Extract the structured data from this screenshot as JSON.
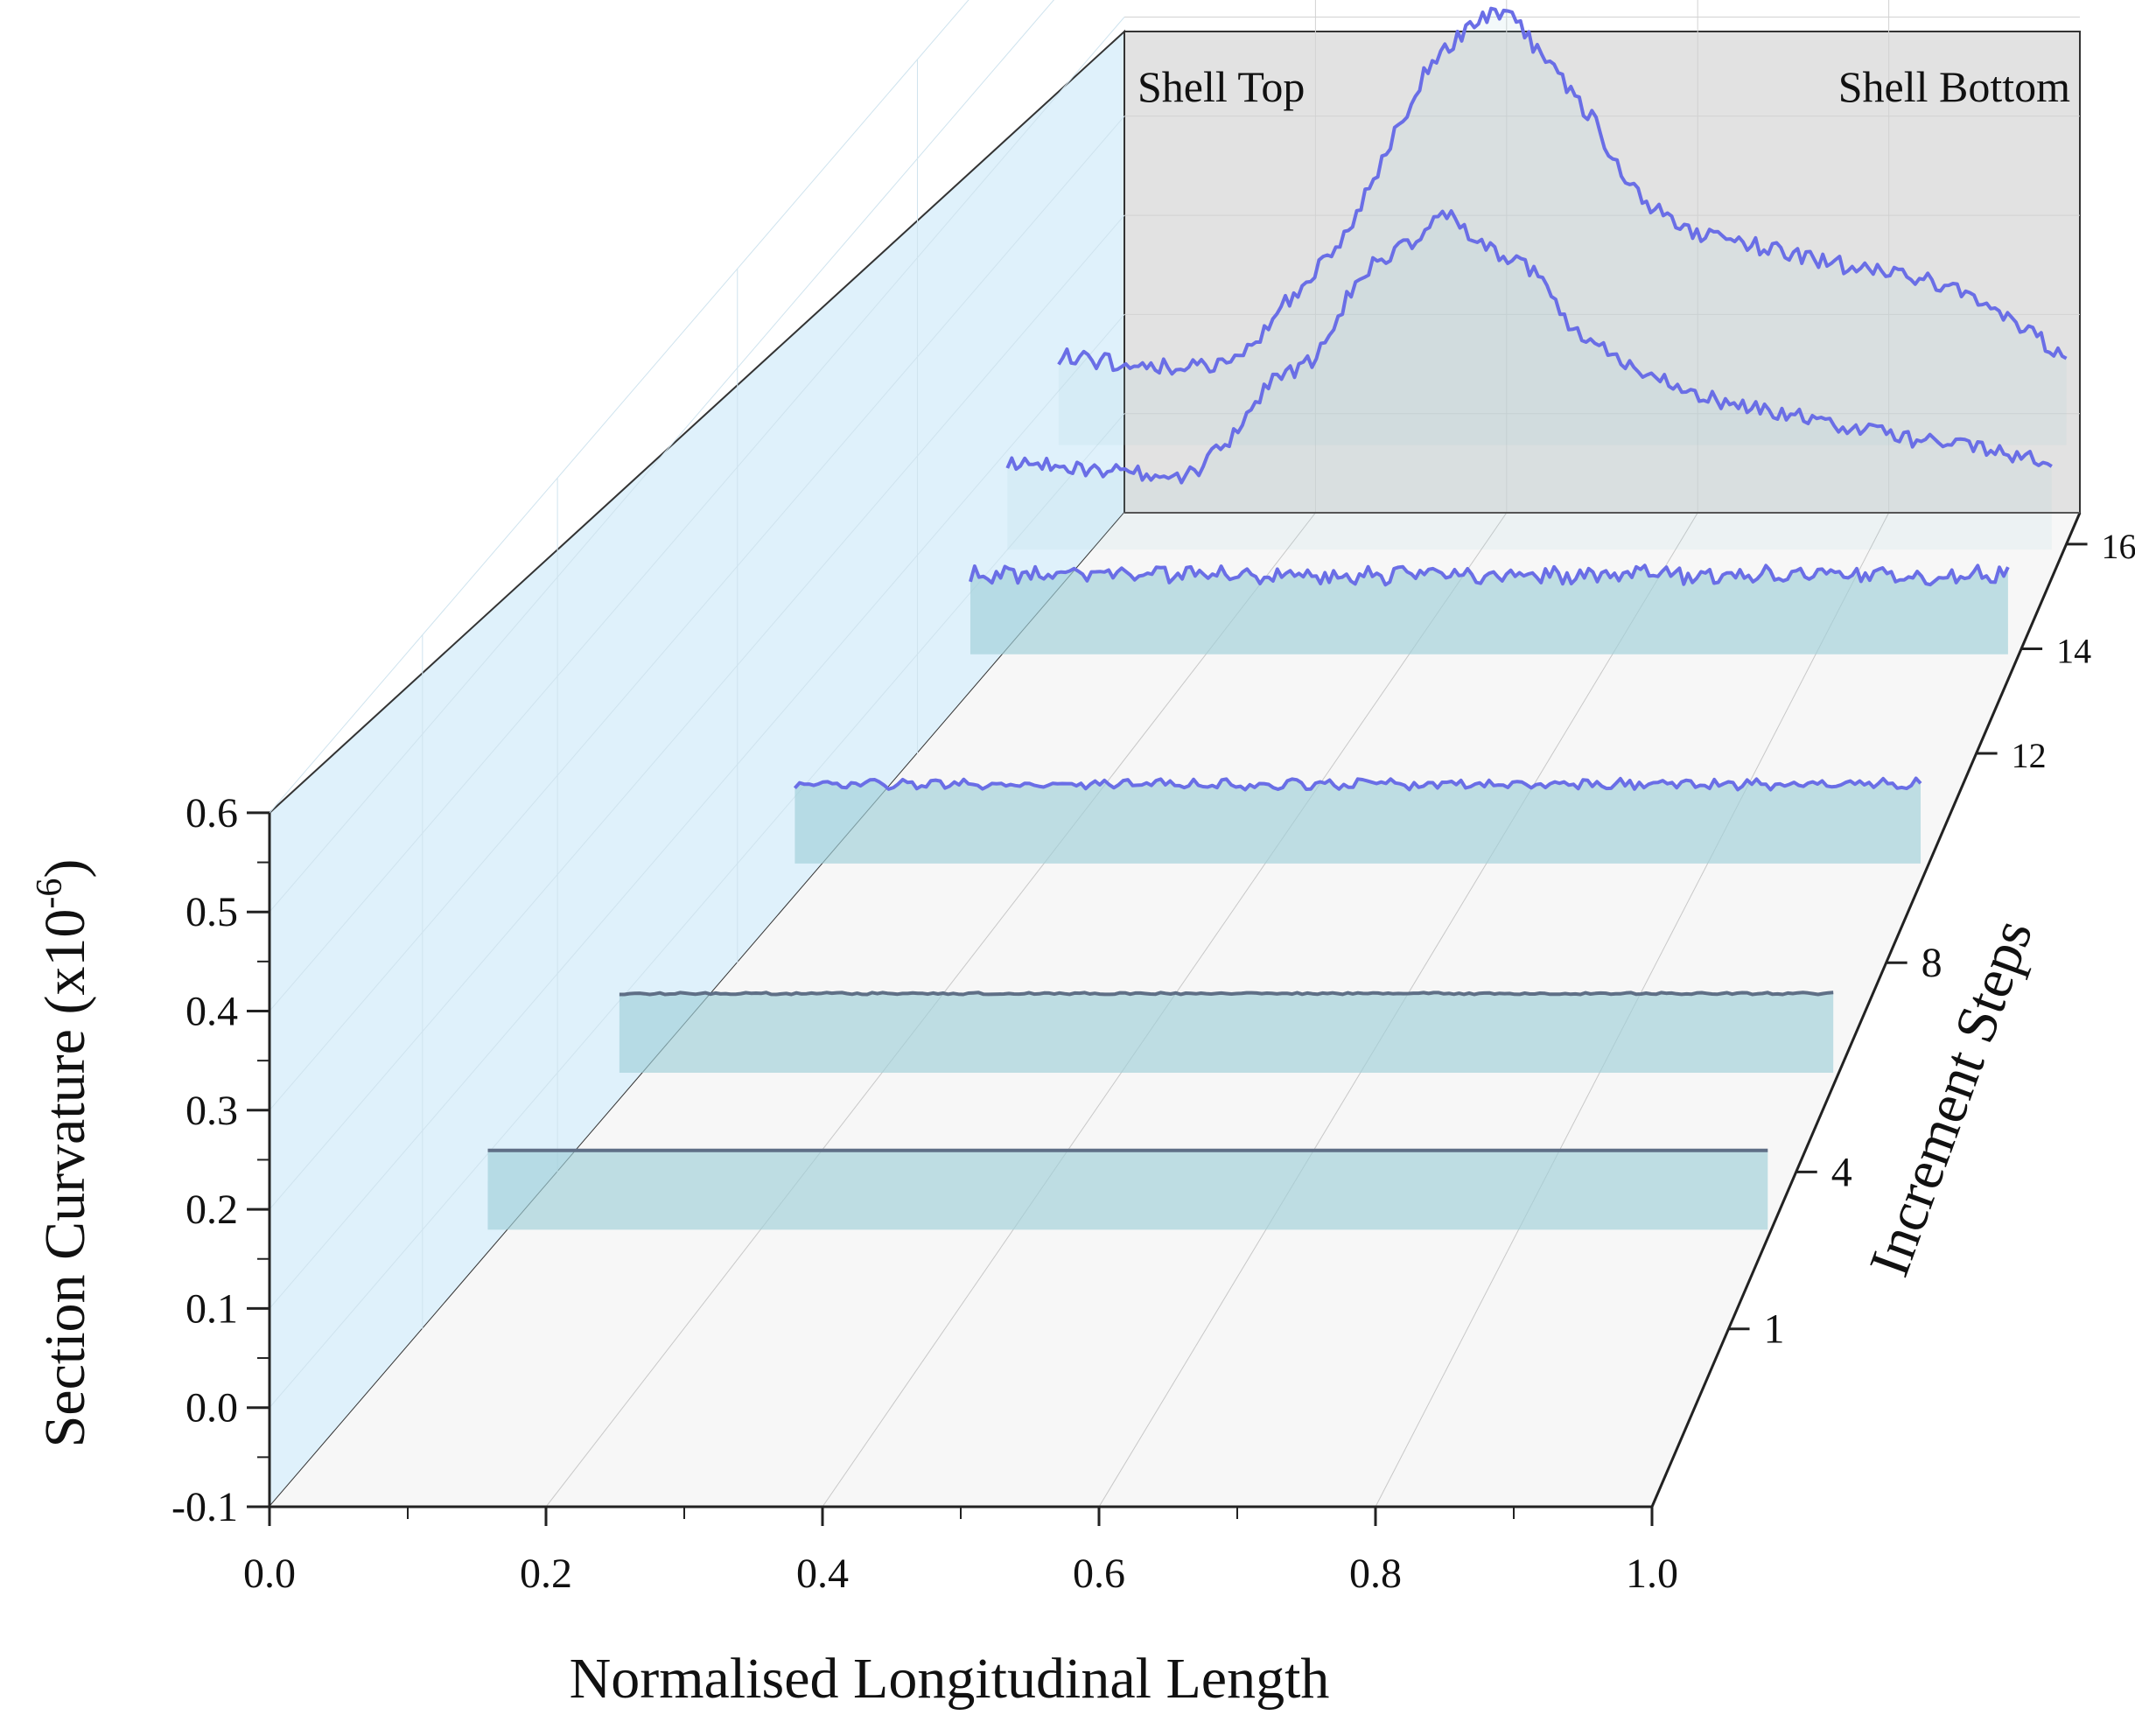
{
  "chart_data": {
    "type": "line",
    "subtype": "3d-waterfall",
    "xlabel": "Normalised Longitudinal Length",
    "ylabel": "Section Curvature (x10",
    "ylabel_exponent": "-6",
    "ylabel_close": ")",
    "zlabel": "Increment Steps",
    "xlim": [
      0.0,
      1.0
    ],
    "ylim": [
      -0.1,
      0.6
    ],
    "x_ticks": [
      "0.0",
      "0.2",
      "0.4",
      "0.6",
      "0.8",
      "1.0"
    ],
    "y_ticks": [
      "-0.1",
      "0.0",
      "0.1",
      "0.2",
      "0.3",
      "0.4",
      "0.5",
      "0.6"
    ],
    "z_ticks": [
      "1",
      "4",
      "8",
      "12",
      "14",
      "16"
    ],
    "annotations": {
      "left": "Shell Top",
      "right": "Shell Bottom"
    },
    "colors": {
      "back_wall": "#e2e2e2",
      "side_wall": "#dff1fb",
      "floor": "#f7f7f7",
      "fill": "#9fd0d9",
      "line_flat": "#5f6f86",
      "line_wave": "#6a6ee6",
      "axis": "#222222",
      "grid": "#c8c8c8"
    },
    "series": [
      {
        "name": "Step 1",
        "step": 1,
        "x_range": [
          0.05,
          1.03
        ],
        "shape": "flat",
        "level": 0.08,
        "noise": 0.0
      },
      {
        "name": "Step 4",
        "step": 4,
        "x_range": [
          0.05,
          1.03
        ],
        "shape": "flat",
        "level": 0.08,
        "noise": 0.001
      },
      {
        "name": "Step 8",
        "step": 8,
        "x_range": [
          0.05,
          1.03
        ],
        "shape": "wavy",
        "level": 0.08,
        "noise": 0.004
      },
      {
        "name": "Step 12",
        "step": 12,
        "x_range": [
          0.05,
          1.03
        ],
        "shape": "wavy",
        "level": 0.08,
        "noise": 0.007
      },
      {
        "name": "Step 14",
        "step": 14,
        "x_range": [
          0.0,
          1.03
        ],
        "shape": "peak",
        "peak_x": 0.43,
        "peak": 0.34,
        "noise": 0.008,
        "profile": [
          [
            0.0,
            0.09
          ],
          [
            0.1,
            0.08
          ],
          [
            0.18,
            0.075
          ],
          [
            0.22,
            0.11
          ],
          [
            0.26,
            0.17
          ],
          [
            0.3,
            0.19
          ],
          [
            0.35,
            0.28
          ],
          [
            0.4,
            0.31
          ],
          [
            0.43,
            0.34
          ],
          [
            0.48,
            0.3
          ],
          [
            0.52,
            0.28
          ],
          [
            0.56,
            0.22
          ],
          [
            0.62,
            0.18
          ],
          [
            0.7,
            0.15
          ],
          [
            0.8,
            0.13
          ],
          [
            0.9,
            0.11
          ],
          [
            1.03,
            0.09
          ]
        ]
      },
      {
        "name": "Step 16",
        "step": 16,
        "x_range": [
          -0.04,
          1.0
        ],
        "shape": "peak",
        "peak_x": 0.42,
        "peak": 0.44,
        "noise": 0.009,
        "profile": [
          [
            -0.04,
            0.09
          ],
          [
            0.05,
            0.08
          ],
          [
            0.12,
            0.08
          ],
          [
            0.16,
            0.1
          ],
          [
            0.2,
            0.15
          ],
          [
            0.25,
            0.2
          ],
          [
            0.3,
            0.3
          ],
          [
            0.34,
            0.38
          ],
          [
            0.38,
            0.42
          ],
          [
            0.42,
            0.44
          ],
          [
            0.47,
            0.38
          ],
          [
            0.51,
            0.33
          ],
          [
            0.55,
            0.26
          ],
          [
            0.6,
            0.22
          ],
          [
            0.68,
            0.2
          ],
          [
            0.78,
            0.18
          ],
          [
            0.88,
            0.16
          ],
          [
            1.0,
            0.09
          ]
        ]
      }
    ]
  }
}
